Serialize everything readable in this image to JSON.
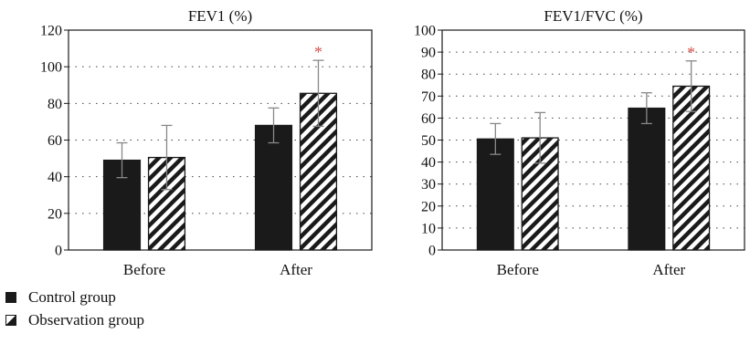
{
  "chart_data": [
    {
      "type": "bar",
      "title": "FEV1 (%)",
      "categories": [
        "Before",
        "After"
      ],
      "ylim": [
        0,
        120
      ],
      "yticks": [
        0,
        20,
        40,
        60,
        80,
        100,
        120
      ],
      "grid": "horizontal dotted",
      "series": [
        {
          "name": "Control group",
          "values": [
            49,
            68
          ],
          "error": [
            9.5,
            9.5
          ],
          "pattern": "solid"
        },
        {
          "name": "Observation group",
          "values": [
            50.5,
            85.5
          ],
          "error": [
            17.5,
            18
          ],
          "pattern": "hatched"
        }
      ],
      "significance": [
        {
          "category": "After",
          "series": "Observation group",
          "mark": "*"
        }
      ]
    },
    {
      "type": "bar",
      "title": "FEV1/FVC (%)",
      "categories": [
        "Before",
        "After"
      ],
      "ylim": [
        0,
        100
      ],
      "yticks": [
        0,
        10,
        20,
        30,
        40,
        50,
        60,
        70,
        80,
        90,
        100
      ],
      "grid": "horizontal dotted",
      "series": [
        {
          "name": "Control group",
          "values": [
            50.5,
            64.5
          ],
          "error": [
            7,
            7
          ],
          "pattern": "solid"
        },
        {
          "name": "Observation group",
          "values": [
            51,
            74.5
          ],
          "error": [
            11.5,
            11.5
          ],
          "pattern": "hatched"
        }
      ],
      "significance": [
        {
          "category": "After",
          "series": "Observation group",
          "mark": "*"
        }
      ]
    }
  ],
  "legend": [
    {
      "label": "Control group",
      "swatch": "solid"
    },
    {
      "label": "Observation group",
      "swatch": "half-filled"
    }
  ],
  "colors": {
    "bar": "#1a1a1a",
    "axis": "#1a1a1a",
    "error_bar": "#888888",
    "significance": "#d9534f"
  }
}
